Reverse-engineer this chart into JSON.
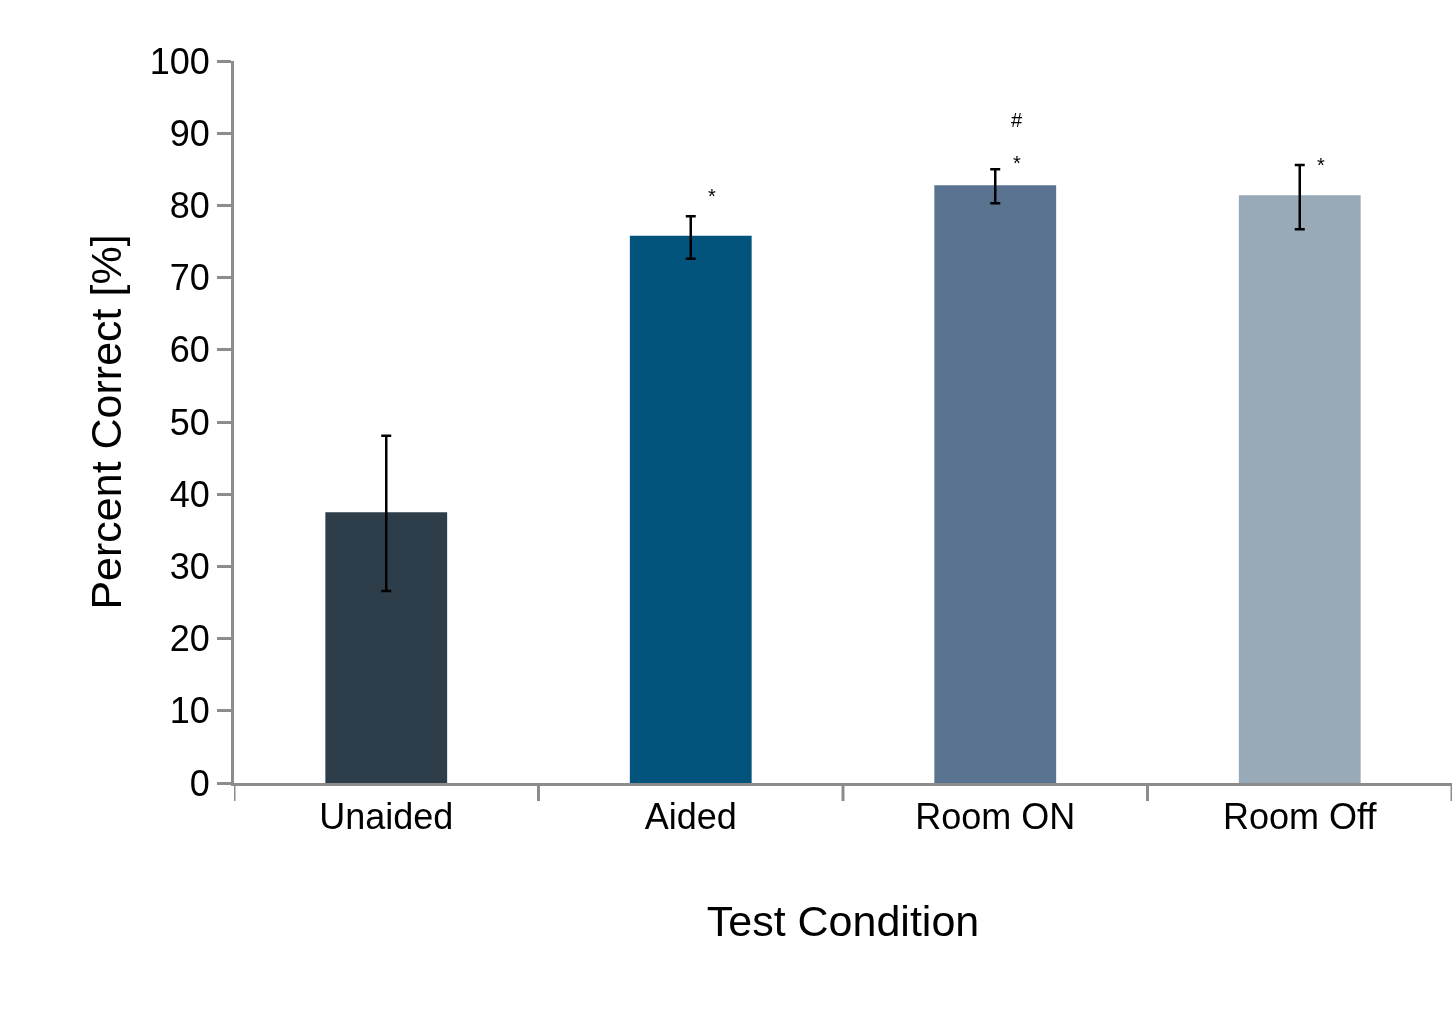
{
  "chart_data": {
    "type": "bar",
    "xlabel": "Test Condition",
    "ylabel": "Percent Correct [%]",
    "categories": [
      "Unaided",
      "Aided",
      "Room ON",
      "Room Off"
    ],
    "values": [
      37.5,
      75.8,
      82.8,
      81.4
    ],
    "colors": [
      "#2d3e4a",
      "#03547c",
      "#58728f",
      "#98a9b8"
    ],
    "errors": [
      [
        26.6,
        48.1
      ],
      [
        72.6,
        78.5
      ],
      [
        80.3,
        85.0
      ],
      [
        76.7,
        85.6
      ]
    ],
    "ylim": [
      0,
      100
    ],
    "yticks": [
      0,
      10,
      20,
      30,
      40,
      50,
      60,
      70,
      80,
      90,
      100
    ],
    "annotations": [
      "*",
      "#",
      "*",
      "*"
    ]
  }
}
